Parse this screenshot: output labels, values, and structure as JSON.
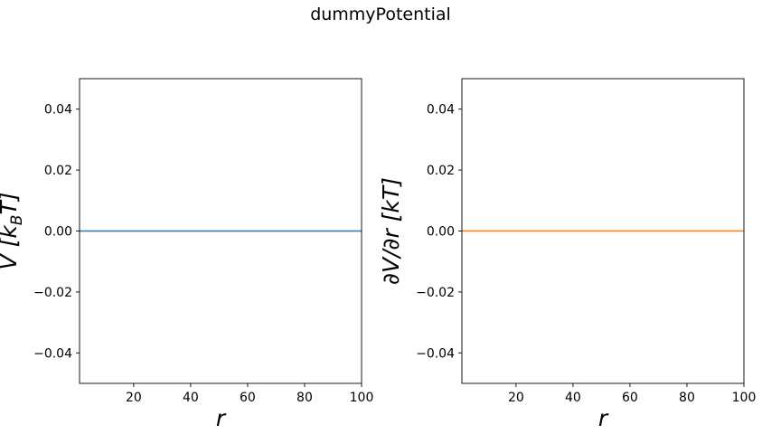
{
  "figure": {
    "suptitle": "dummyPotential"
  },
  "chart_data": [
    {
      "type": "line",
      "title": "",
      "xlabel": "r",
      "ylabel": "V [k_B T]",
      "ylabel_parts": {
        "main": "V [k",
        "sub": "B",
        "tail": "T]"
      },
      "xlim": [
        1,
        100
      ],
      "ylim": [
        -0.05,
        0.05
      ],
      "xticks": [
        20,
        40,
        60,
        80,
        100
      ],
      "xtick_labels": [
        "20",
        "40",
        "60",
        "80",
        "100"
      ],
      "yticks": [
        0.04,
        0.02,
        0.0,
        -0.02,
        -0.04
      ],
      "ytick_labels": [
        "0.04",
        "0.02",
        "0.00",
        "−0.02",
        "−0.04"
      ],
      "grid": false,
      "series": [
        {
          "color": "#1f77b4",
          "x": [
            1,
            100
          ],
          "y": [
            0,
            0
          ]
        }
      ]
    },
    {
      "type": "line",
      "title": "",
      "xlabel": "r",
      "ylabel": "∂V/∂r [kT]",
      "xlim": [
        1,
        100
      ],
      "ylim": [
        -0.05,
        0.05
      ],
      "xticks": [
        20,
        40,
        60,
        80,
        100
      ],
      "xtick_labels": [
        "20",
        "40",
        "60",
        "80",
        "100"
      ],
      "yticks": [
        0.04,
        0.02,
        0.0,
        -0.02,
        -0.04
      ],
      "ytick_labels": [
        "0.04",
        "0.02",
        "0.00",
        "−0.02",
        "−0.04"
      ],
      "grid": false,
      "series": [
        {
          "color": "#ff7f0e",
          "x": [
            1,
            100
          ],
          "y": [
            0,
            0
          ]
        }
      ]
    }
  ]
}
